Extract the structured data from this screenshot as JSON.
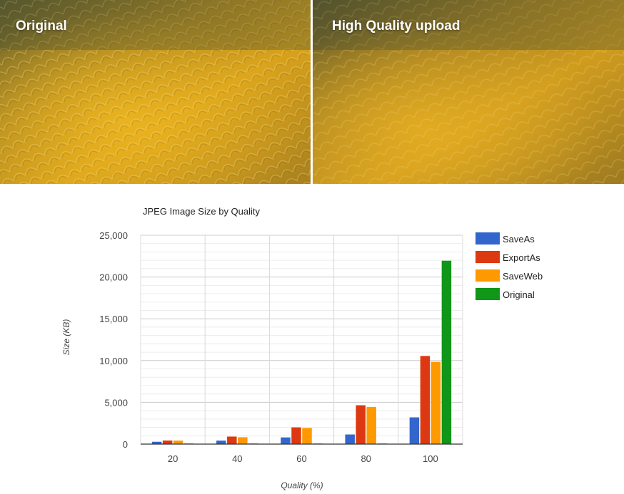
{
  "photos": {
    "left_label": "Original",
    "right_label": "High Quality upload"
  },
  "chart_data": {
    "type": "bar",
    "title": "JPEG Image Size by Quality",
    "xlabel": "Quality (%)",
    "ylabel": "Size (KB)",
    "ylim": [
      0,
      25000
    ],
    "yticks": [
      0,
      5000,
      10000,
      15000,
      20000,
      25000
    ],
    "ytick_labels": [
      "0",
      "5,000",
      "10,000",
      "15,000",
      "20,000",
      "25,000"
    ],
    "grid": true,
    "legend_position": "right",
    "categories": [
      "20",
      "40",
      "60",
      "80",
      "100"
    ],
    "series": [
      {
        "name": "SaveAs",
        "color": "#3366cc",
        "values": [
          280,
          420,
          800,
          1150,
          3200
        ]
      },
      {
        "name": "ExportAs",
        "color": "#dc3912",
        "values": [
          430,
          900,
          2000,
          4650,
          10550
        ]
      },
      {
        "name": "SaveWeb",
        "color": "#ff9900",
        "values": [
          420,
          820,
          1930,
          4450,
          9850
        ]
      },
      {
        "name": "Original",
        "color": "#109618",
        "values": [
          0,
          0,
          0,
          0,
          21950
        ]
      }
    ]
  }
}
